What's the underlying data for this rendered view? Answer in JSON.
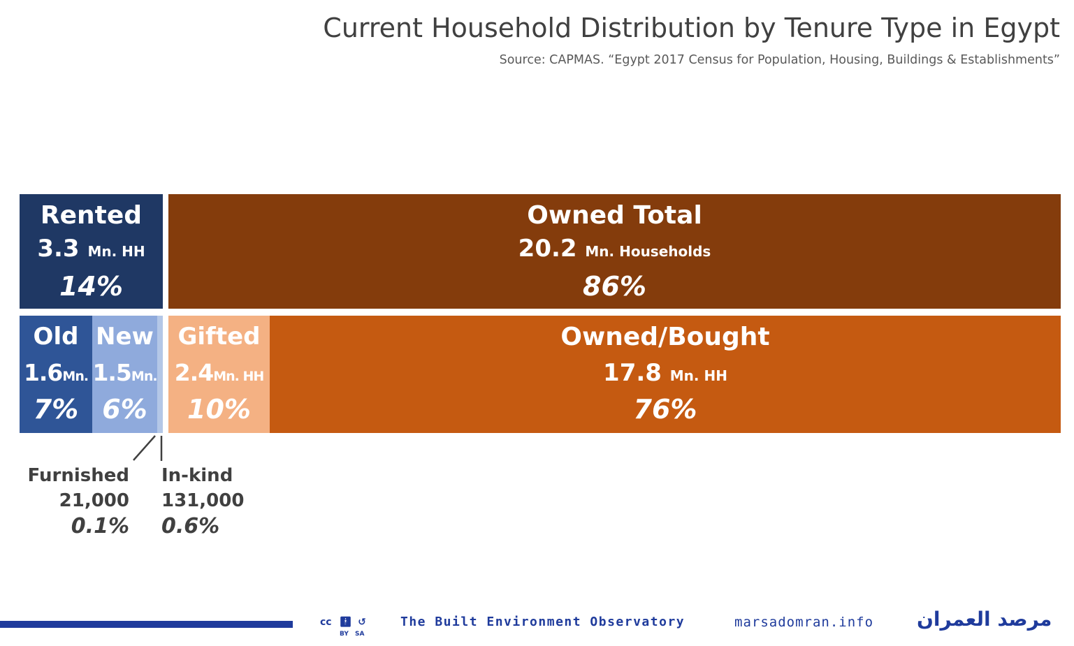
{
  "title": "Current Household Distribution by Tenure Type in Egypt",
  "subtitle": "Source: CAPMAS. “Egypt 2017 Census for Population, Housing, Buildings & Establishments”",
  "colors": {
    "rented": "#1f3864",
    "owned_total": "#843c0c",
    "old": "#2f5597",
    "new": "#8faadc",
    "inkind_strip": "#b4c7e7",
    "gifted": "#f4b183",
    "owned_bought": "#c55a11"
  },
  "chart_data": {
    "type": "treemap",
    "title": "Current Household Distribution by Tenure Type in Egypt",
    "top_row": [
      {
        "label": "Rented",
        "value_text": "3.3",
        "unit": "Mn. HH",
        "value_mn": 3.3,
        "share_text": "14%",
        "share": 14
      },
      {
        "label": "Owned Total",
        "value_text": "20.2",
        "unit": "Mn. Households",
        "value_mn": 20.2,
        "share_text": "86%",
        "share": 86
      }
    ],
    "bottom_row": [
      {
        "label": "Old",
        "value_text": "1.6",
        "unit": "Mn.",
        "value_mn": 1.6,
        "share_text": "7%",
        "share": 7
      },
      {
        "label": "New",
        "value_text": "1.5",
        "unit": "Mn.",
        "value_mn": 1.5,
        "share_text": "6%",
        "share": 6
      },
      {
        "label": "Gifted",
        "value_text": "2.4",
        "unit": "Mn. HH",
        "value_mn": 2.4,
        "share_text": "10%",
        "share": 10
      },
      {
        "label": "Owned/Bought",
        "value_text": "17.8",
        "unit": "Mn. HH",
        "value_mn": 17.8,
        "share_text": "76%",
        "share": 76
      }
    ],
    "small_categories": [
      {
        "label": "Furnished",
        "value_text": "21,000",
        "value": 21000,
        "share_text": "0.1%",
        "share": 0.1
      },
      {
        "label": "In-kind",
        "value_text": "131,000",
        "value": 131000,
        "share_text": "0.6%",
        "share": 0.6
      }
    ]
  },
  "footer": {
    "cc_label": "cc",
    "cc_by": "BY",
    "cc_sa": "SA",
    "org_name": "The Built Environment Observatory",
    "website": "marsadomran.info",
    "arabic_name": "مرصد العمران"
  }
}
